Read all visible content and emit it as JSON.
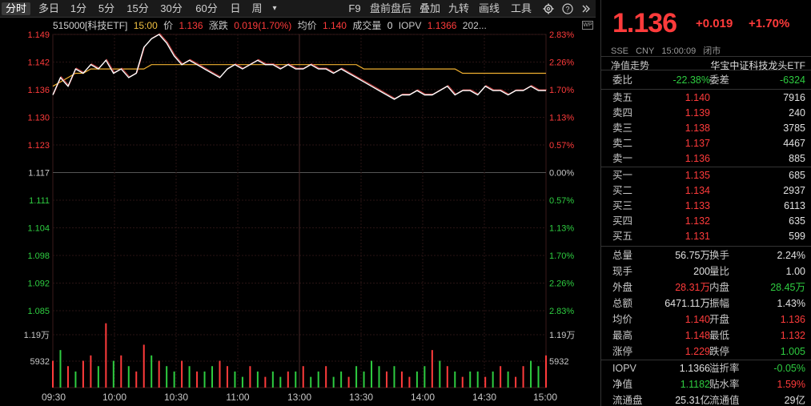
{
  "toolbar": {
    "items": [
      "分时",
      "多日",
      "1分",
      "5分",
      "15分",
      "30分",
      "60分",
      "日",
      "周",
      "▾"
    ],
    "right_items": [
      "F9",
      "盘前盘后",
      "叠加",
      "九转",
      "画线",
      "工具"
    ]
  },
  "info": {
    "code": "515000[科技ETF]",
    "time": "15:00",
    "price_label": "价",
    "price": "1.136",
    "chg_label": "涨跌",
    "chg": "0.019(1.70%)",
    "avg_label": "均价",
    "avg": "1.140",
    "vol_label": "成交量",
    "vol": "0",
    "iopv_label": "IOPV",
    "iopv": "1.1366",
    "date": "202..."
  },
  "chart_data": {
    "type": "line",
    "x_ticks": [
      "09:30",
      "10:00",
      "10:30",
      "11:00",
      "13:00",
      "13:30",
      "14:00",
      "14:30",
      "15:00"
    ],
    "y_left_ticks": [
      "1.149",
      "1.142",
      "1.136",
      "1.130",
      "1.123",
      "1.117",
      "1.111",
      "1.104",
      "1.098",
      "1.092",
      "1.085"
    ],
    "y_right_ticks": [
      "2.83%",
      "2.26%",
      "1.70%",
      "1.13%",
      "0.57%",
      "0.00%",
      "0.57%",
      "1.13%",
      "1.70%",
      "2.26%",
      "2.83%"
    ],
    "vol_ticks": [
      "1.19万",
      "5932"
    ],
    "prev_close": 1.117,
    "ylim": [
      1.085,
      1.149
    ],
    "price_series": [
      1.135,
      1.139,
      1.137,
      1.141,
      1.14,
      1.142,
      1.141,
      1.143,
      1.14,
      1.141,
      1.139,
      1.14,
      1.146,
      1.148,
      1.149,
      1.147,
      1.144,
      1.142,
      1.143,
      1.142,
      1.141,
      1.14,
      1.139,
      1.141,
      1.142,
      1.141,
      1.142,
      1.143,
      1.142,
      1.142,
      1.141,
      1.142,
      1.141,
      1.141,
      1.142,
      1.141,
      1.141,
      1.14,
      1.141,
      1.14,
      1.139,
      1.138,
      1.137,
      1.136,
      1.135,
      1.134,
      1.135,
      1.135,
      1.136,
      1.135,
      1.135,
      1.136,
      1.137,
      1.135,
      1.136,
      1.136,
      1.135,
      1.137,
      1.136,
      1.136,
      1.135,
      1.136,
      1.136,
      1.137,
      1.136,
      1.136
    ],
    "avg_series": [
      1.137,
      1.138,
      1.139,
      1.14,
      1.14,
      1.141,
      1.141,
      1.141,
      1.141,
      1.141,
      1.141,
      1.141,
      1.141,
      1.142,
      1.142,
      1.142,
      1.142,
      1.142,
      1.142,
      1.142,
      1.142,
      1.142,
      1.142,
      1.142,
      1.142,
      1.142,
      1.142,
      1.142,
      1.142,
      1.142,
      1.142,
      1.142,
      1.142,
      1.142,
      1.142,
      1.142,
      1.142,
      1.142,
      1.142,
      1.142,
      1.142,
      1.141,
      1.141,
      1.141,
      1.141,
      1.141,
      1.141,
      1.141,
      1.141,
      1.141,
      1.141,
      1.141,
      1.141,
      1.141,
      1.14,
      1.14,
      1.14,
      1.14,
      1.14,
      1.14,
      1.14,
      1.14,
      1.14,
      1.14,
      1.14,
      1.14
    ],
    "volumes": [
      0.5,
      0.7,
      0.4,
      0.3,
      0.5,
      0.6,
      0.4,
      1.2,
      0.5,
      0.6,
      0.4,
      0.3,
      0.8,
      0.6,
      0.5,
      0.4,
      0.3,
      0.5,
      0.4,
      0.3,
      0.3,
      0.4,
      0.5,
      0.4,
      0.3,
      0.2,
      0.4,
      0.3,
      0.2,
      0.3,
      0.2,
      0.3,
      0.3,
      0.4,
      0.2,
      0.3,
      0.4,
      0.2,
      0.3,
      0.2,
      0.4,
      0.3,
      0.5,
      0.4,
      0.3,
      0.4,
      0.3,
      0.2,
      0.3,
      0.4,
      0.7,
      0.5,
      0.4,
      0.3,
      0.2,
      0.3,
      0.3,
      0.2,
      0.3,
      0.4,
      0.3,
      0.2,
      0.4,
      0.5,
      0.4,
      0.6
    ],
    "volume_up": [
      true,
      false,
      true,
      false,
      true,
      true,
      false,
      true,
      false,
      true,
      false,
      true,
      true,
      false,
      true,
      false,
      false,
      true,
      false,
      true,
      false,
      false,
      true,
      true,
      false,
      false,
      true,
      false,
      true,
      false,
      false,
      true,
      false,
      true,
      false,
      false,
      true,
      false,
      false,
      true,
      false,
      false,
      false,
      false,
      true,
      false,
      true,
      true,
      false,
      false,
      true,
      false,
      true,
      false,
      true,
      false,
      false,
      true,
      false,
      true,
      false,
      true,
      true,
      false,
      false,
      true
    ]
  },
  "quote": {
    "price": "1.136",
    "change": "+0.019",
    "change_pct": "+1.70%",
    "exchange": "SSE",
    "currency": "CNY",
    "time": "15:00:09",
    "status": "闭市",
    "nav_label": "净值走势",
    "name": "华宝中证科技龙头ETF",
    "weibi_label": "委比",
    "weibi": "-22.38%",
    "weicha_label": "委差",
    "weicha": "-6324"
  },
  "asks": [
    {
      "label": "卖五",
      "price": "1.140",
      "vol": "7916"
    },
    {
      "label": "卖四",
      "price": "1.139",
      "vol": "240"
    },
    {
      "label": "卖三",
      "price": "1.138",
      "vol": "3785"
    },
    {
      "label": "卖二",
      "price": "1.137",
      "vol": "4467"
    },
    {
      "label": "卖一",
      "price": "1.136",
      "vol": "885"
    }
  ],
  "bids": [
    {
      "label": "买一",
      "price": "1.135",
      "vol": "685"
    },
    {
      "label": "买二",
      "price": "1.134",
      "vol": "2937"
    },
    {
      "label": "买三",
      "price": "1.133",
      "vol": "6113"
    },
    {
      "label": "买四",
      "price": "1.132",
      "vol": "635"
    },
    {
      "label": "买五",
      "price": "1.131",
      "vol": "599"
    }
  ],
  "stats": [
    {
      "l1": "总量",
      "v1": "56.75万",
      "c1": "white",
      "l2": "换手",
      "v2": "2.24%",
      "c2": "white"
    },
    {
      "l1": "现手",
      "v1": "200",
      "c1": "white",
      "l2": "量比",
      "v2": "1.00",
      "c2": "white"
    },
    {
      "l1": "外盘",
      "v1": "28.31万",
      "c1": "red",
      "l2": "内盘",
      "v2": "28.45万",
      "c2": "green"
    },
    {
      "l1": "总额",
      "v1": "6471.11万",
      "c1": "white",
      "l2": "振幅",
      "v2": "1.43%",
      "c2": "white"
    },
    {
      "l1": "均价",
      "v1": "1.140",
      "c1": "red",
      "l2": "开盘",
      "v2": "1.136",
      "c2": "red"
    },
    {
      "l1": "最高",
      "v1": "1.148",
      "c1": "red",
      "l2": "最低",
      "v2": "1.132",
      "c2": "red"
    },
    {
      "l1": "涨停",
      "v1": "1.229",
      "c1": "red",
      "l2": "跌停",
      "v2": "1.005",
      "c2": "green"
    }
  ],
  "extra": [
    {
      "l1": "IOPV",
      "v1": "1.1366",
      "c1": "white",
      "l2": "溢折率",
      "v2": "-0.05%",
      "c2": "green"
    },
    {
      "l1": "净值",
      "v1": "1.1182",
      "c1": "green",
      "l2": "贴水率",
      "v2": "1.59%",
      "c2": "red"
    },
    {
      "l1": "流通盘",
      "v1": "25.31亿",
      "c1": "white",
      "l2": "流通值",
      "v2": "29亿",
      "c2": "white"
    }
  ]
}
